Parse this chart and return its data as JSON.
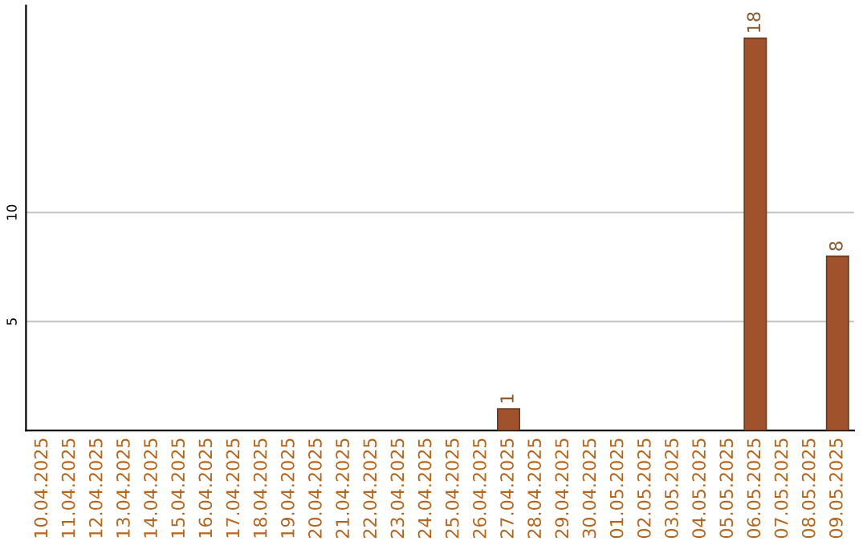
{
  "chart_data": {
    "type": "bar",
    "categories": [
      "10.04.2025",
      "11.04.2025",
      "12.04.2025",
      "13.04.2025",
      "14.04.2025",
      "15.04.2025",
      "16.04.2025",
      "17.04.2025",
      "18.04.2025",
      "19.04.2025",
      "20.04.2025",
      "21.04.2025",
      "22.04.2025",
      "23.04.2025",
      "24.04.2025",
      "25.04.2025",
      "26.04.2025",
      "27.04.2025",
      "28.04.2025",
      "29.04.2025",
      "30.04.2025",
      "01.05.2025",
      "02.05.2025",
      "03.05.2025",
      "04.05.2025",
      "05.05.2025",
      "06.05.2025",
      "07.05.2025",
      "08.05.2025",
      "09.05.2025"
    ],
    "values": [
      null,
      null,
      null,
      null,
      null,
      null,
      null,
      null,
      null,
      null,
      null,
      null,
      null,
      null,
      null,
      null,
      null,
      1,
      null,
      null,
      null,
      null,
      null,
      null,
      null,
      null,
      18,
      null,
      null,
      8
    ],
    "color": "#a0522d",
    "ylim": [
      0,
      19.5
    ],
    "yticks": [
      5,
      10
    ],
    "grid": "y",
    "data_labels": true
  }
}
